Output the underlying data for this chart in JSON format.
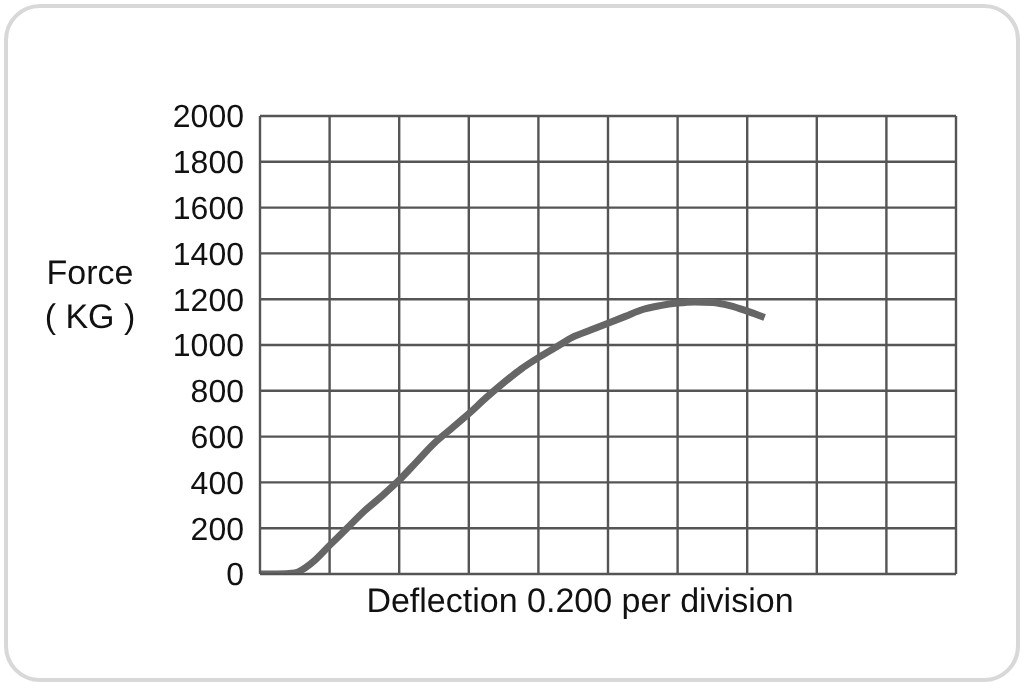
{
  "chart_data": {
    "type": "line",
    "xlabel": "Deflection 0.200 per division",
    "ylabel": "Force ( KG )",
    "categories": [
      null,
      null,
      null,
      null,
      null,
      null,
      null,
      null,
      null,
      null,
      null,
      null,
      null,
      null,
      null,
      null,
      null,
      null,
      null,
      null,
      null,
      null,
      null,
      null,
      null,
      null,
      null,
      null,
      null,
      null,
      null,
      null,
      null,
      null,
      null,
      null,
      null,
      null,
      null,
      null,
      null
    ],
    "series": [
      {
        "color": "#666666",
        "values": [
          0,
          0,
          5,
          50,
          125,
          200,
          275,
          340,
          410,
          490,
          570,
          635,
          700,
          770,
          835,
          895,
          945,
          990,
          1035,
          1065,
          1095,
          1125,
          1155,
          1172,
          1183,
          1188,
          1186,
          1172,
          1148,
          1120,
          null,
          null,
          null,
          null,
          null,
          null,
          null,
          null,
          null,
          null,
          null
        ]
      }
    ],
    "ylim": [
      0,
      2000
    ],
    "yticks": [
      0,
      200,
      400,
      600,
      800,
      1000,
      1200,
      1400,
      1600,
      1800,
      2000
    ],
    "tick_labels": "y",
    "grid": true,
    "marker": "none",
    "line_style": "solid"
  }
}
